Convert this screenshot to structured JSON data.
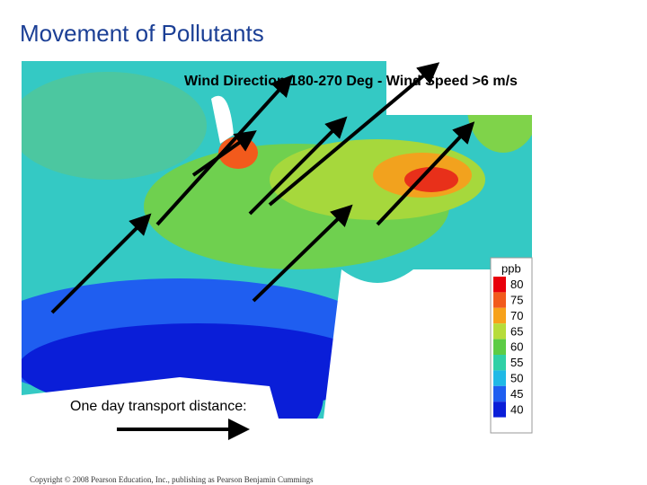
{
  "title": "Movement of Pollutants",
  "map": {
    "caption": "Wind Direction 180-270 Deg - Wind Speed >6 m/s",
    "transport_label": "One day transport distance:",
    "legend": {
      "title": "ppb",
      "items": [
        {
          "value": 80,
          "color": "#e8000b"
        },
        {
          "value": 75,
          "color": "#f25a1c"
        },
        {
          "value": 70,
          "color": "#f7a21b"
        },
        {
          "value": 65,
          "color": "#b7dc3a"
        },
        {
          "value": 60,
          "color": "#5ccc45"
        },
        {
          "value": 55,
          "color": "#2fd0a6"
        },
        {
          "value": 50,
          "color": "#20b9e6"
        },
        {
          "value": 45,
          "color": "#1f5ef0"
        },
        {
          "value": 40,
          "color": "#0a1ed8"
        }
      ]
    }
  },
  "footer": "Copyright © 2008 Pearson Education, Inc., publishing as Pearson Benjamin Cummings"
}
